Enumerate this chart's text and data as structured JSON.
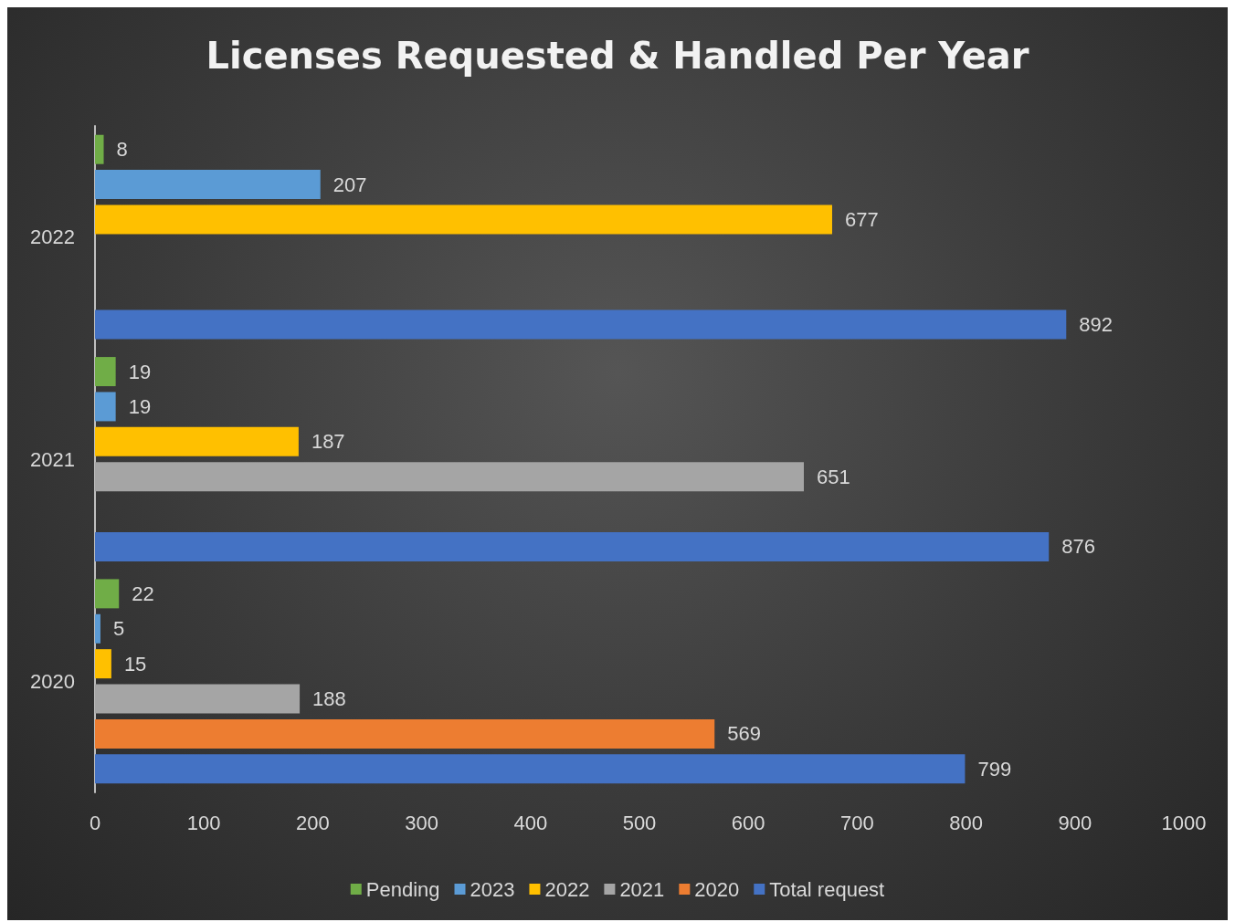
{
  "chart_data": {
    "type": "bar",
    "orientation": "horizontal",
    "title": "Licenses Requested & Handled Per Year",
    "categories": [
      "2022",
      "2021",
      "2020"
    ],
    "series": [
      {
        "name": "Pending",
        "color": "#70ad47",
        "values": [
          8,
          19,
          22
        ]
      },
      {
        "name": "2023",
        "color": "#5b9bd5",
        "values": [
          207,
          19,
          5
        ]
      },
      {
        "name": "2022",
        "color": "#ffc000",
        "values": [
          677,
          187,
          15
        ]
      },
      {
        "name": "2021",
        "color": "#a5a5a5",
        "values": [
          null,
          651,
          188
        ]
      },
      {
        "name": "2020",
        "color": "#ed7d31",
        "values": [
          null,
          null,
          569
        ]
      },
      {
        "name": "Total request",
        "color": "#4472c4",
        "values": [
          892,
          876,
          799
        ]
      }
    ],
    "xlim": [
      0,
      1000
    ],
    "xticks": [
      0,
      100,
      200,
      300,
      400,
      500,
      600,
      700,
      800,
      900,
      1000
    ],
    "data_labels": true,
    "grid": false,
    "legend": "bottom"
  }
}
